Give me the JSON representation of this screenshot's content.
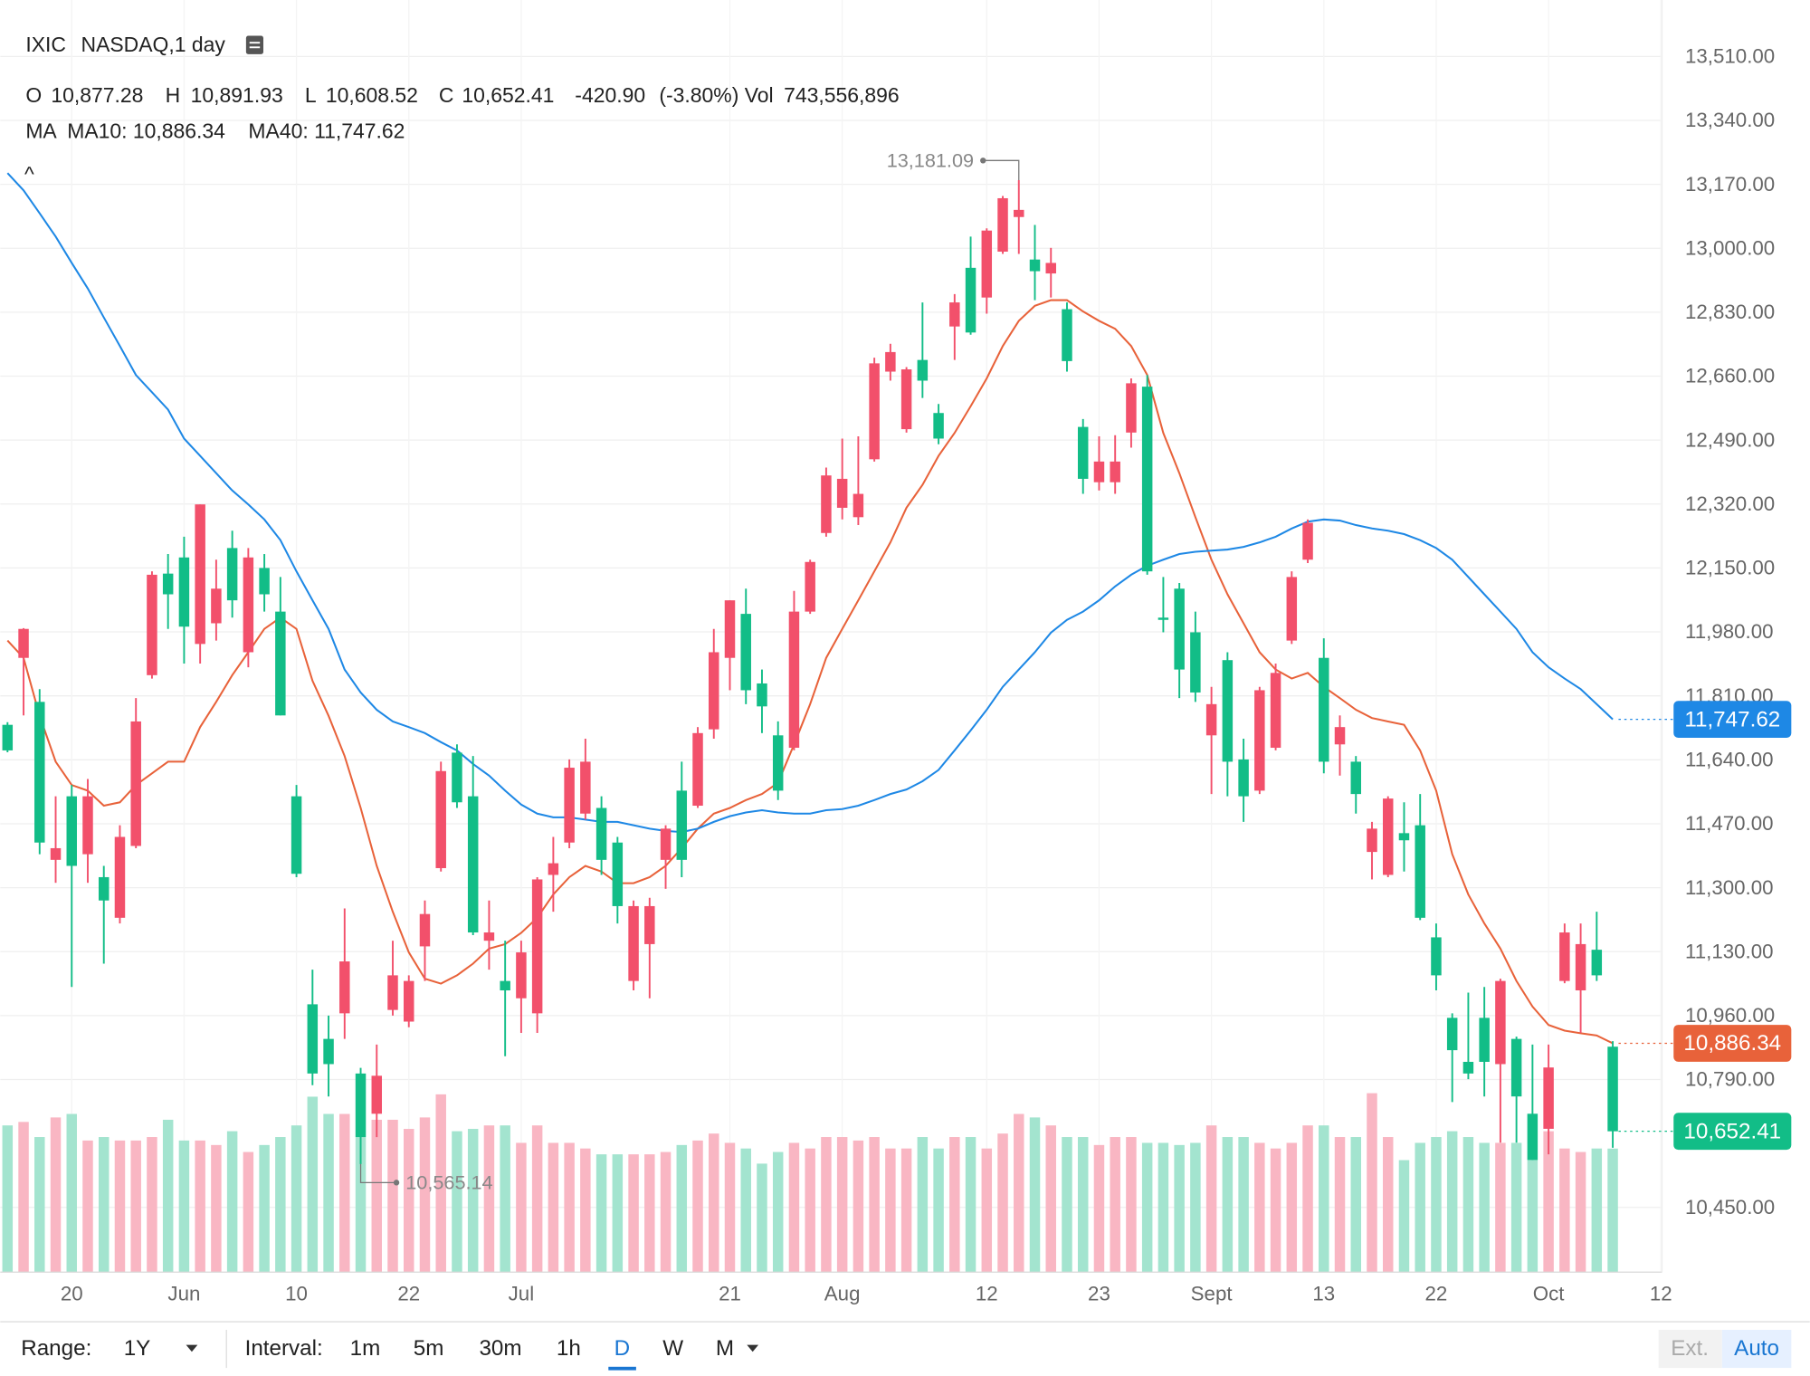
{
  "header": {
    "symbol": "IXIC",
    "exchange": "NASDAQ,1 day",
    "collapse": "^",
    "quote": [
      {
        "key": "O",
        "value": "10,877.28"
      },
      {
        "key": "H",
        "value": "10,891.93"
      },
      {
        "key": "L",
        "value": "10,608.52"
      },
      {
        "key": "C",
        "value": "10,652.41"
      }
    ],
    "change": "-420.90",
    "change_pct": "(-3.80%)",
    "volume_key": "Vol",
    "volume": "743,556,896",
    "ma_key": "MA",
    "ma10": "MA10: 10,886.34",
    "ma40": "MA40: 11,747.62"
  },
  "toolbar": {
    "range_label": "Range:",
    "range": "1Y",
    "interval_label": "Interval:",
    "intervals": [
      "1m",
      "5m",
      "30m",
      "1h",
      "D",
      "W",
      "M"
    ],
    "ext": "Ext.",
    "auto": "Auto"
  },
  "chart_data": {
    "type": "candlestick",
    "grid": true,
    "rise_color": "#f2506b",
    "fall_color": "#12bd87",
    "rise_volume_color": "#f9b6c3",
    "fall_volume_color": "#a3e4cf",
    "ylim": [
      10278,
      13660
    ],
    "yticks": [
      {
        "value": 13510,
        "label": "13,510.00"
      },
      {
        "value": 13340,
        "label": "13,340.00"
      },
      {
        "value": 13170,
        "label": "13,170.00"
      },
      {
        "value": 13000,
        "label": "13,000.00"
      },
      {
        "value": 12830,
        "label": "12,830.00"
      },
      {
        "value": 12660,
        "label": "12,660.00"
      },
      {
        "value": 12490,
        "label": "12,490.00"
      },
      {
        "value": 12320,
        "label": "12,320.00"
      },
      {
        "value": 12150,
        "label": "12,150.00"
      },
      {
        "value": 11980,
        "label": "11,980.00"
      },
      {
        "value": 11810,
        "label": "11,810.00"
      },
      {
        "value": 11640,
        "label": "11,640.00"
      },
      {
        "value": 11470,
        "label": "11,470.00"
      },
      {
        "value": 11300,
        "label": "11,300.00"
      },
      {
        "value": 11130,
        "label": "11,130.00"
      },
      {
        "value": 10960,
        "label": "10,960.00"
      },
      {
        "value": 10790,
        "label": "10,790.00"
      },
      {
        "value": 10450,
        "label": "10,450.00"
      }
    ],
    "categories": [
      null,
      null,
      null,
      null,
      "20",
      null,
      null,
      null,
      null,
      null,
      null,
      "Jun",
      null,
      null,
      null,
      null,
      null,
      null,
      "10",
      null,
      null,
      null,
      null,
      null,
      null,
      "22",
      null,
      null,
      null,
      null,
      null,
      null,
      "Jul",
      null,
      null,
      null,
      null,
      null,
      null,
      null,
      null,
      null,
      null,
      null,
      null,
      "21",
      null,
      null,
      null,
      null,
      null,
      null,
      "Aug",
      null,
      null,
      null,
      null,
      null,
      null,
      null,
      null,
      "12",
      null,
      null,
      null,
      null,
      null,
      null,
      "23",
      null,
      null,
      null,
      null,
      null,
      null,
      "Sept",
      null,
      null,
      null,
      null,
      null,
      null,
      "13",
      null,
      null,
      null,
      null,
      null,
      null,
      "22",
      null,
      null,
      null,
      null,
      null,
      null,
      "Oct",
      null,
      null,
      null,
      null,
      null,
      null,
      "12"
    ],
    "open": [
      11733,
      11911,
      11794,
      11374,
      11543,
      11389,
      11328,
      11220,
      11411,
      11865,
      12135,
      12178,
      11948,
      12003,
      12203,
      11926,
      12150,
      12034,
      11543,
      10990,
      10898,
      10966,
      10806,
      10699,
      10975,
      10944,
      11144,
      11352,
      11659,
      11543,
      11159,
      11052,
      11006,
      10966,
      11334,
      11420,
      11497,
      11512,
      11420,
      11052,
      11150,
      11374,
      11558,
      11518,
      11721,
      11911,
      12028,
      11843,
      11705,
      11672,
      12034,
      12243,
      12310,
      12285,
      12439,
      12672,
      12519,
      12703,
      12562,
      12792,
      12948,
      12869,
      12991,
      13083,
      12970,
      12933,
      12838,
      12525,
      12378,
      12378,
      12510,
      12632,
      12018,
      12095,
      11979,
      11705,
      11905,
      11641,
      11558,
      11672,
      11957,
      12172,
      11911,
      11681,
      11635,
      11395,
      11334,
      11445,
      11466,
      11168,
      10954,
      10837,
      10954,
      10831,
      10898,
      10699,
      10659,
      11052,
      11027,
      11135,
      10877.28,
      null,
      null,
      null
    ],
    "high": [
      11740,
      11990,
      11828,
      11543,
      11573,
      11589,
      11358,
      11466,
      11804,
      12141,
      12187,
      12233,
      12319,
      12172,
      12249,
      12203,
      12187,
      12126,
      11573,
      11082,
      10960,
      11245,
      10821,
      10883,
      11159,
      11067,
      11266,
      11635,
      11681,
      11650,
      11266,
      11159,
      11159,
      11328,
      11435,
      11641,
      11696,
      11543,
      11435,
      11266,
      11273,
      11466,
      11635,
      11727,
      11988,
      12064,
      12095,
      11880,
      11742,
      12089,
      12172,
      12417,
      12494,
      12500,
      12709,
      12746,
      12684,
      12856,
      12586,
      12878,
      13031,
      13053,
      13139,
      13181.09,
      13062,
      13001,
      12856,
      12546,
      12500,
      12503,
      12654,
      12663,
      12126,
      12110,
      12034,
      11834,
      11926,
      11696,
      11834,
      11896,
      12141,
      12279,
      11963,
      11758,
      11650,
      11475,
      11543,
      11527,
      11549,
      11205,
      10966,
      11021,
      11036,
      11058,
      10904,
      10883,
      10883,
      11205,
      11205,
      11236,
      10891.93,
      null,
      null,
      null
    ],
    "low": [
      11660,
      11758,
      11389,
      11313,
      11036,
      11313,
      11098,
      11205,
      11405,
      11856,
      11988,
      11896,
      11896,
      11957,
      12018,
      11886,
      12034,
      11758,
      11328,
      10775,
      10745,
      10898,
      10565.14,
      10637,
      10960,
      10929,
      11052,
      11343,
      11512,
      11174,
      11082,
      10852,
      10914,
      10914,
      11236,
      11405,
      11481,
      11334,
      11205,
      11027,
      11006,
      11297,
      11328,
      11512,
      11696,
      11825,
      11788,
      11711,
      11533,
      11665,
      12028,
      12233,
      12279,
      12264,
      12433,
      12648,
      12510,
      12602,
      12479,
      12703,
      12770,
      12826,
      12985,
      12985,
      12862,
      12869,
      12672,
      12347,
      12356,
      12347,
      12470,
      12132,
      11979,
      11804,
      11794,
      11549,
      11543,
      11475,
      11549,
      11665,
      11948,
      12163,
      11604,
      11598,
      11497,
      11322,
      11328,
      11343,
      11214,
      11027,
      10730,
      10791,
      10745,
      10622,
      10622,
      10576,
      10591,
      11046,
      10914,
      11052,
      10608.52,
      null,
      null,
      null
    ],
    "close": [
      11665,
      11988,
      11420,
      11405,
      11358,
      11543,
      11266,
      11435,
      11742,
      12132,
      12080,
      11994,
      12319,
      12095,
      12064,
      12178,
      12080,
      11758,
      11337,
      10806,
      10831,
      11104,
      10637,
      10800,
      11067,
      11052,
      11230,
      11610,
      11527,
      11181,
      11181,
      11027,
      11128,
      11322,
      11365,
      11619,
      11635,
      11374,
      11251,
      11251,
      11251,
      11457,
      11374,
      11711,
      11926,
      12064,
      11825,
      11782,
      11558,
      12034,
      12166,
      12396,
      12387,
      12347,
      12694,
      12724,
      12678,
      12648,
      12494,
      12856,
      12776,
      13047,
      13133,
      13102,
      12939,
      12961,
      12700,
      12387,
      12433,
      12433,
      12641,
      12141,
      12012,
      11880,
      11819,
      11788,
      11635,
      11543,
      11825,
      11871,
      12126,
      12270,
      11635,
      11727,
      11549,
      11457,
      11537,
      11426,
      11220,
      11067,
      10868,
      10806,
      10837,
      11052,
      10745,
      10576,
      10822,
      11181,
      11150,
      11067,
      10652.41,
      null,
      null,
      null
    ],
    "volume": [
      883000000,
      904000000,
      813000000,
      931000000,
      952000000,
      792000000,
      813000000,
      792000000,
      792000000,
      813000000,
      917000000,
      792000000,
      792000000,
      765000000,
      848000000,
      723000000,
      765000000,
      813000000,
      883000000,
      1056000000,
      952000000,
      952000000,
      813000000,
      917000000,
      917000000,
      862000000,
      931000000,
      1070000000,
      848000000,
      862000000,
      883000000,
      883000000,
      778000000,
      883000000,
      778000000,
      778000000,
      744000000,
      709000000,
      709000000,
      709000000,
      709000000,
      723000000,
      765000000,
      792000000,
      834000000,
      778000000,
      744000000,
      653000000,
      723000000,
      778000000,
      744000000,
      813000000,
      813000000,
      792000000,
      813000000,
      744000000,
      744000000,
      813000000,
      744000000,
      813000000,
      813000000,
      744000000,
      834000000,
      952000000,
      931000000,
      883000000,
      813000000,
      813000000,
      765000000,
      813000000,
      813000000,
      778000000,
      778000000,
      765000000,
      778000000,
      883000000,
      813000000,
      813000000,
      778000000,
      744000000,
      778000000,
      883000000,
      883000000,
      813000000,
      813000000,
      1077000000,
      813000000,
      674000000,
      778000000,
      813000000,
      848000000,
      813000000,
      778000000,
      778000000,
      778000000,
      674000000,
      848000000,
      744000000,
      723000000,
      744000000,
      743556896,
      null,
      null,
      null
    ],
    "overlays": [
      {
        "color": "#e8623a",
        "last_label": "10,886.34",
        "values": [
          11957,
          11911,
          11757,
          11635,
          11573,
          11558,
          11518,
          11527,
          11573,
          11604,
          11635,
          11635,
          11727,
          11794,
          11865,
          11926,
          11988,
          12018,
          11988,
          11850,
          11757,
          11650,
          11512,
          11358,
          11236,
          11128,
          11058,
          11045,
          11067,
          11098,
          11138,
          11150,
          11180,
          11220,
          11282,
          11328,
          11358,
          11343,
          11312,
          11312,
          11328,
          11358,
          11405,
          11457,
          11497,
          11512,
          11533,
          11549,
          11579,
          11681,
          11788,
          11911,
          11988,
          12064,
          12141,
          12218,
          12310,
          12371,
          12448,
          12509,
          12580,
          12654,
          12740,
          12807,
          12847,
          12862,
          12862,
          12832,
          12807,
          12786,
          12740,
          12663,
          12509,
          12402,
          12285,
          12172,
          12080,
          12003,
          11926,
          11880,
          11856,
          11871,
          11834,
          11804,
          11773,
          11751,
          11742,
          11733,
          11665,
          11558,
          11389,
          11282,
          11205,
          11138,
          11052,
          10984,
          10935,
          10920,
          10913,
          10907,
          10886.34,
          null,
          null,
          null
        ]
      },
      {
        "color": "#1e88e5",
        "last_label": "11,747.62",
        "values": [
          13200,
          13154,
          13093,
          13031,
          12961,
          12893,
          12816,
          12740,
          12663,
          12617,
          12571,
          12494,
          12448,
          12402,
          12356,
          12319,
          12279,
          12224,
          12141,
          12064,
          11988,
          11880,
          11819,
          11773,
          11742,
          11727,
          11711,
          11687,
          11665,
          11629,
          11598,
          11558,
          11521,
          11497,
          11487,
          11487,
          11481,
          11475,
          11475,
          11466,
          11457,
          11451,
          11448,
          11457,
          11475,
          11490,
          11500,
          11506,
          11500,
          11497,
          11497,
          11506,
          11509,
          11518,
          11533,
          11549,
          11561,
          11583,
          11613,
          11665,
          11718,
          11773,
          11834,
          11880,
          11926,
          11978,
          12012,
          12034,
          12064,
          12101,
          12132,
          12156,
          12172,
          12187,
          12193,
          12196,
          12199,
          12206,
          12218,
          12233,
          12255,
          12273,
          12279,
          12276,
          12264,
          12255,
          12249,
          12240,
          12224,
          12203,
          12172,
          12126,
          12080,
          12034,
          11988,
          11926,
          11886,
          11856,
          11828,
          11788,
          11747.62,
          null,
          null,
          null
        ]
      }
    ],
    "close_label": "10,652.41",
    "high_label": "13,181.09",
    "low_label": "10,565.14"
  }
}
